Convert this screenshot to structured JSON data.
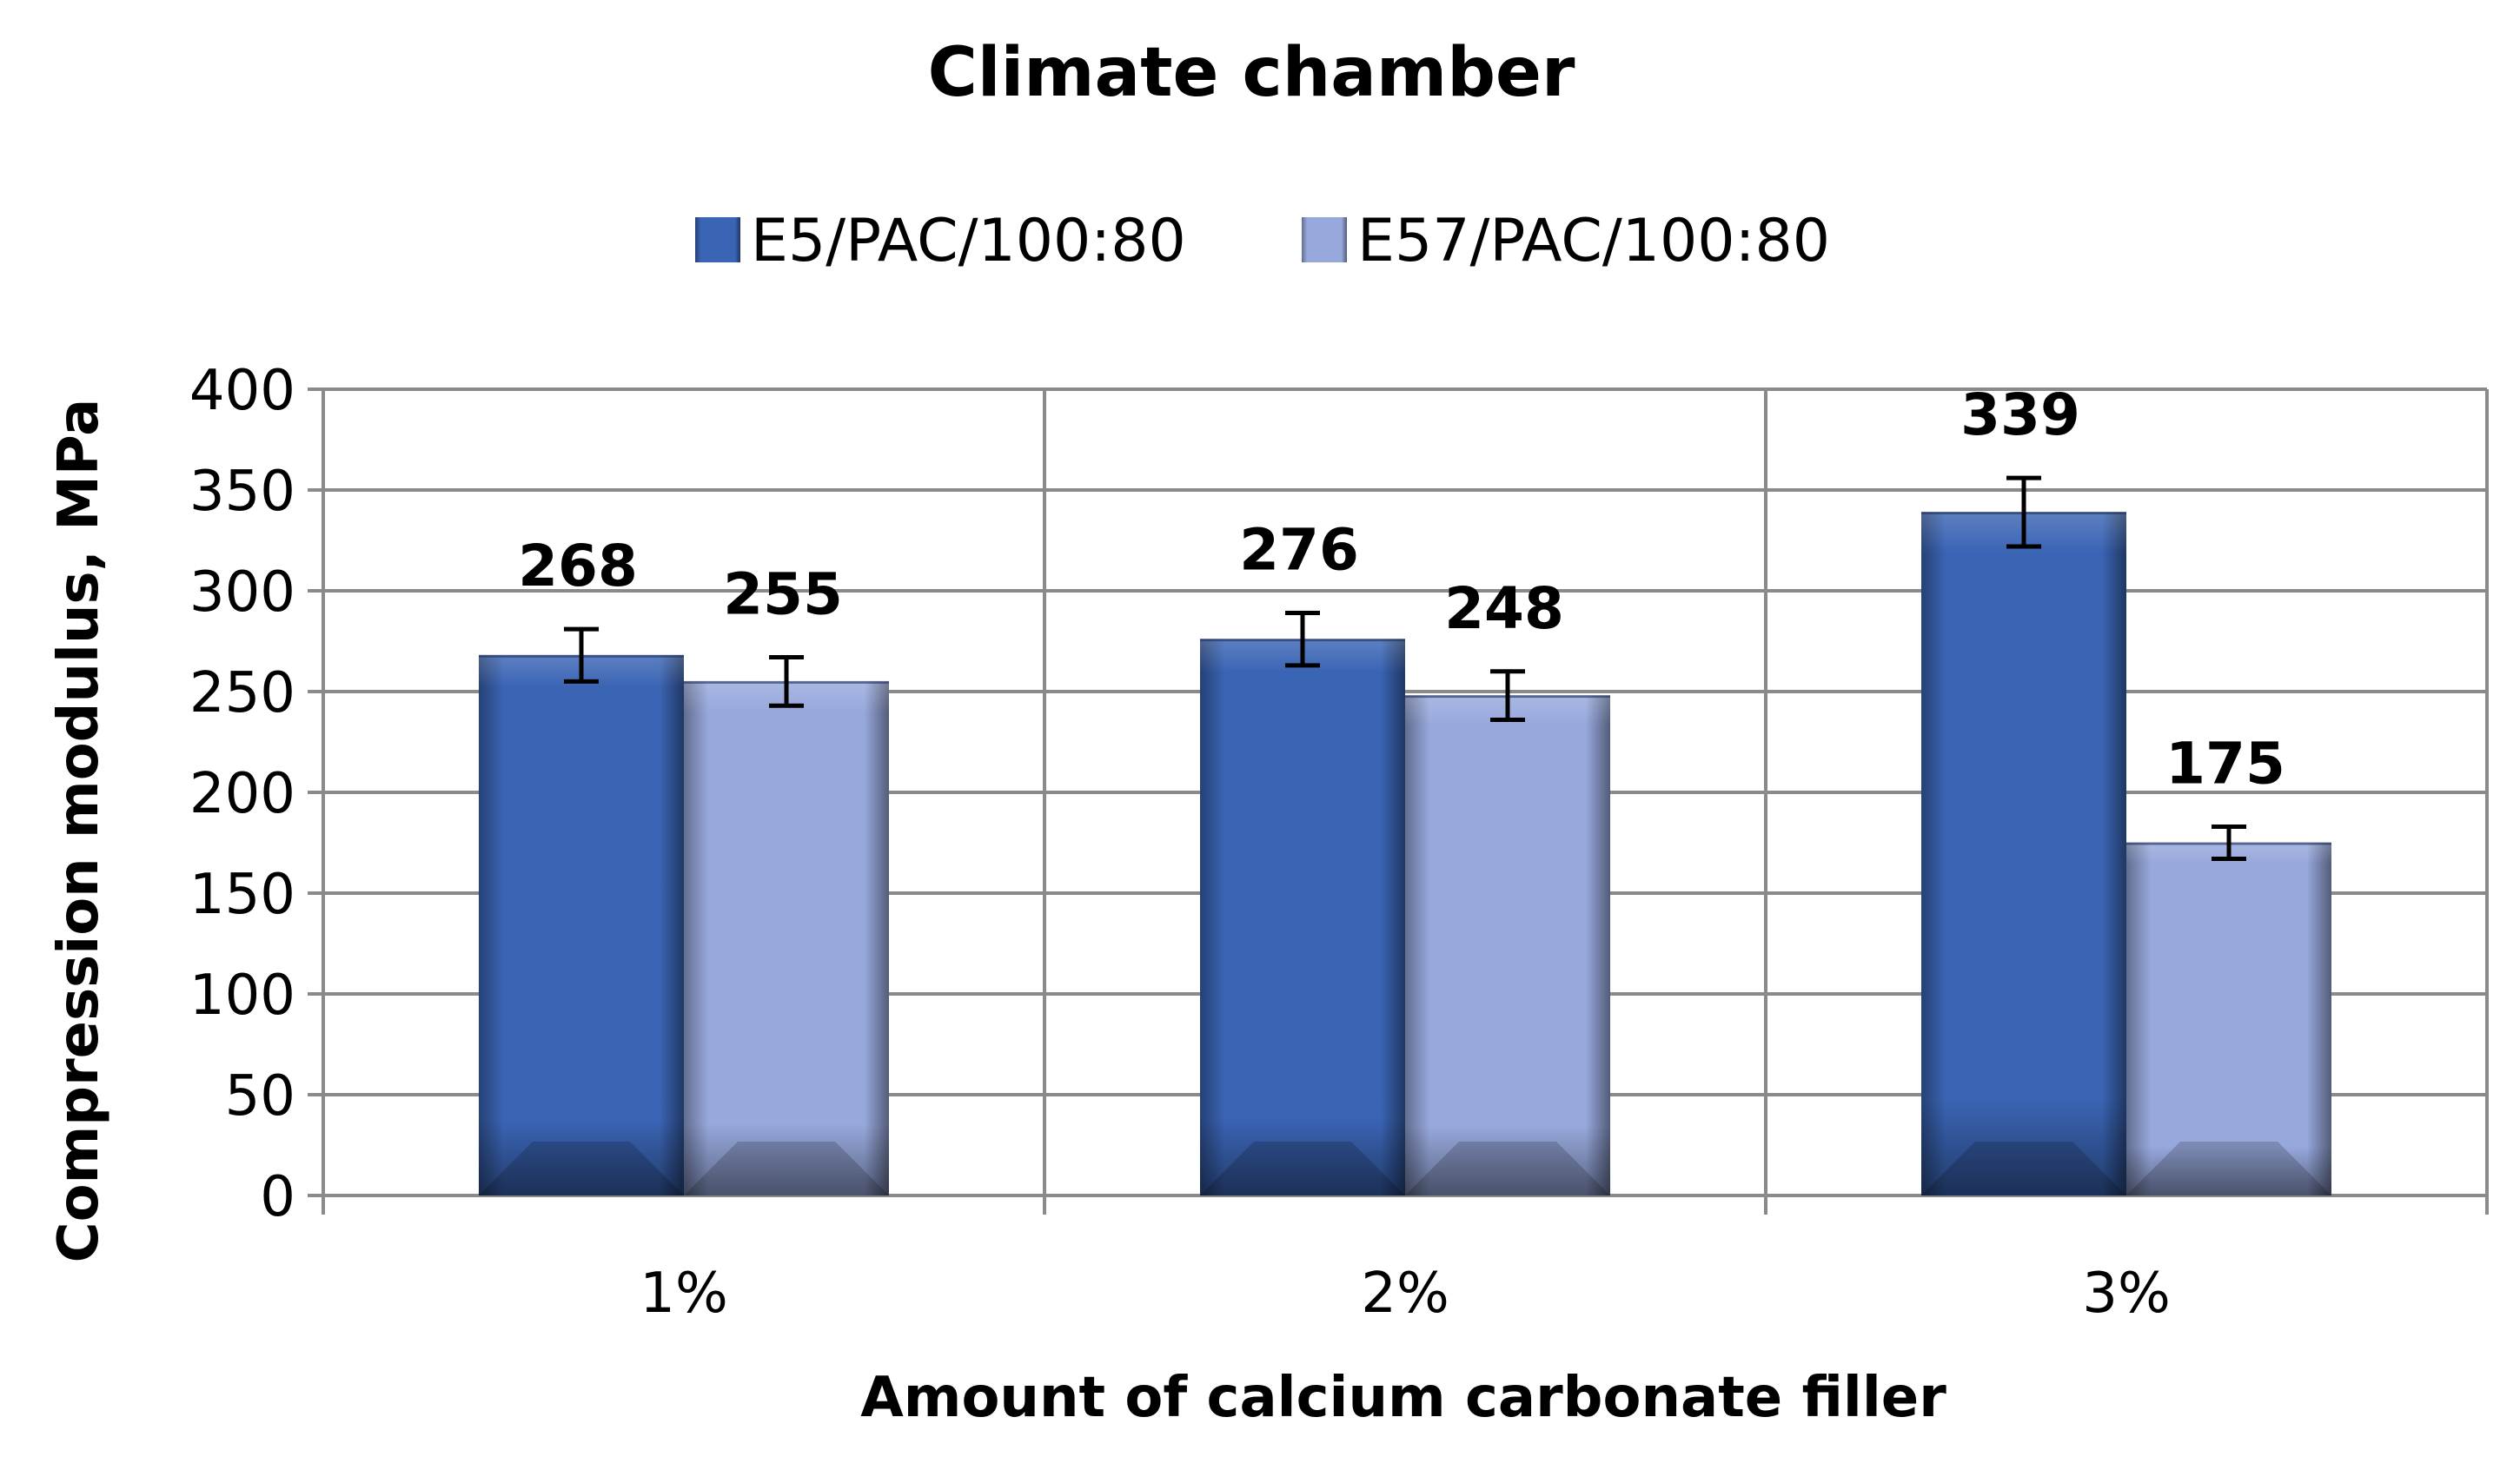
{
  "chart_data": {
    "type": "bar",
    "title": "Climate chamber",
    "xlabel": "Amount of calcium carbonate filler",
    "ylabel": "Compression modulus, MPa",
    "categories": [
      "1%",
      "2%",
      "3%"
    ],
    "ylim": [
      0,
      400
    ],
    "yticks": [
      0,
      50,
      100,
      150,
      200,
      250,
      300,
      350,
      400
    ],
    "grid": true,
    "legend_position": "top",
    "series": [
      {
        "name": "E5/PAC/100:80",
        "values": [
          268,
          276,
          339
        ],
        "errors": [
          13,
          13,
          17
        ],
        "color": "#3a64b4"
      },
      {
        "name": "E57/PAC/100:80",
        "values": [
          255,
          248,
          175
        ],
        "errors": [
          12,
          12,
          8
        ],
        "color": "#97a8dc"
      }
    ]
  }
}
